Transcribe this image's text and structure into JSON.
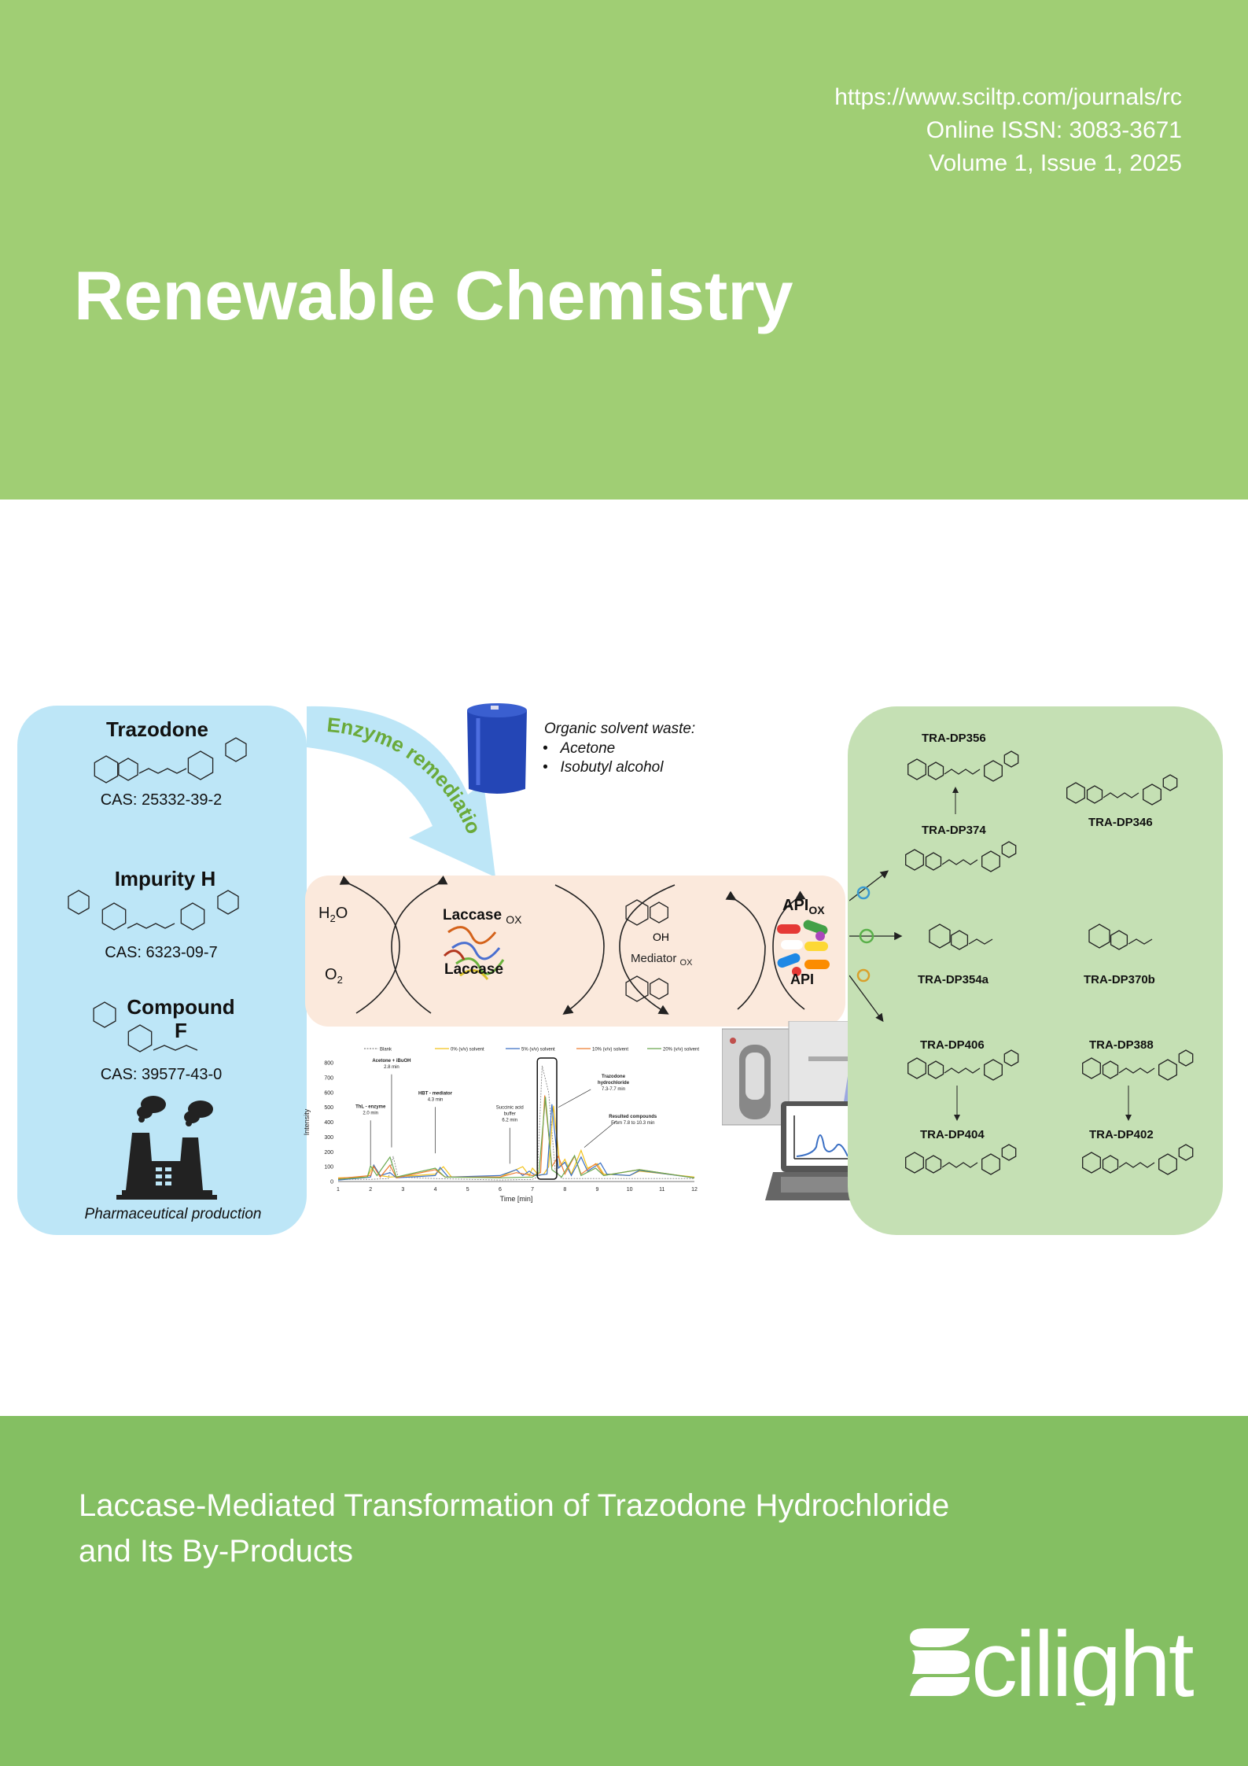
{
  "journal": {
    "url": "https://www.sciltp.com/journals/rc",
    "issn": "Online ISSN: 3083-3671",
    "volume": "Volume 1, Issue 1, 2025",
    "title": "Renewable Chemistry"
  },
  "article": {
    "title_line1": "Laccase-Mediated Transformation of Trazodone Hydrochloride",
    "title_line2": "and Its By-Products"
  },
  "publisher": {
    "logo_text": "Scilight"
  },
  "colors": {
    "header": "#a0ce74",
    "footer": "#84bf62",
    "left_panel": "#bde6f7",
    "right_panel": "#c5e0b4",
    "reaction_box": "#fbe9dc",
    "arrow": "#bde6f7",
    "arrow_text": "#6aaa3a"
  },
  "graphical_abstract": {
    "sources": [
      {
        "name": "Trazodone",
        "cas": "CAS: 25332-39-2"
      },
      {
        "name": "Impurity H",
        "cas": "CAS: 6323-09-7"
      },
      {
        "name_line1": "Compound",
        "name_line2": "F",
        "cas": "CAS: 39577-43-0"
      }
    ],
    "factory_caption": "Pharmaceutical production",
    "arrow_label": "Enzyme remediation",
    "solvent": {
      "heading": "Organic solvent waste:",
      "items": [
        "Acetone",
        "Isobutyl alcohol"
      ]
    },
    "reaction": {
      "h2o": "H",
      "h2o_sub": "2",
      "h2o_end": "O",
      "o2": "O",
      "o2_sub": "2",
      "laccase_ox": "Laccase",
      "laccase_ox_sub": "OX",
      "laccase": "Laccase",
      "hbt_oh": "OH",
      "mediator_ox": "Mediator",
      "mediator_ox_sub": "OX",
      "api_ox": "API",
      "api_ox_sub": "OX",
      "api": "API"
    },
    "products": [
      "TRA-DP356",
      "TRA-DP346",
      "TRA-DP374",
      "TRA-DP354a",
      "TRA-DP370b",
      "TRA-DP406",
      "TRA-DP388",
      "TRA-DP404",
      "TRA-DP402"
    ]
  },
  "chart_data": {
    "type": "line",
    "xlabel": "Time [min]",
    "ylabel": "Intensity",
    "xlim": [
      1,
      12
    ],
    "ylim": [
      0,
      800
    ],
    "xticks": [
      "1",
      "2",
      "3",
      "4",
      "5",
      "6",
      "7",
      "8",
      "9",
      "10",
      "11",
      "12"
    ],
    "yticks": [
      "0",
      "100",
      "200",
      "300",
      "400",
      "500",
      "600",
      "700",
      "800"
    ],
    "legend_position": "top",
    "series": [
      {
        "name": "Blank",
        "color": "#888888",
        "dashed": true,
        "points": [
          [
            1,
            15
          ],
          [
            2,
            15
          ],
          [
            2.55,
            20
          ],
          [
            2.7,
            170
          ],
          [
            2.85,
            30
          ],
          [
            4,
            20
          ],
          [
            6,
            10
          ],
          [
            7,
            15
          ],
          [
            7.15,
            30
          ],
          [
            7.3,
            780
          ],
          [
            7.5,
            600
          ],
          [
            7.7,
            80
          ],
          [
            7.9,
            20
          ],
          [
            12,
            20
          ]
        ]
      },
      {
        "name": "0% (v/v) solvent",
        "color": "#f2c21b",
        "points": [
          [
            1,
            25
          ],
          [
            1.9,
            30
          ],
          [
            2.1,
            110
          ],
          [
            2.3,
            40
          ],
          [
            2.6,
            30
          ],
          [
            3.4,
            40
          ],
          [
            4,
            50
          ],
          [
            4.25,
            100
          ],
          [
            4.5,
            30
          ],
          [
            6,
            30
          ],
          [
            6.7,
            100
          ],
          [
            6.9,
            40
          ],
          [
            7,
            90
          ],
          [
            7.2,
            40
          ],
          [
            7.35,
            50
          ],
          [
            7.5,
            100
          ],
          [
            7.65,
            510
          ],
          [
            7.85,
            100
          ],
          [
            8,
            150
          ],
          [
            8.2,
            50
          ],
          [
            8.5,
            210
          ],
          [
            8.7,
            90
          ],
          [
            9,
            120
          ],
          [
            9.2,
            50
          ],
          [
            10,
            40
          ],
          [
            10.3,
            70
          ],
          [
            12,
            30
          ]
        ]
      },
      {
        "name": "5% (v/v) solvent",
        "color": "#3a6fc4",
        "points": [
          [
            1,
            10
          ],
          [
            2,
            30
          ],
          [
            2.1,
            110
          ],
          [
            2.3,
            40
          ],
          [
            2.6,
            60
          ],
          [
            2.8,
            25
          ],
          [
            4,
            40
          ],
          [
            4.15,
            95
          ],
          [
            4.4,
            30
          ],
          [
            6,
            40
          ],
          [
            6.5,
            80
          ],
          [
            6.7,
            40
          ],
          [
            6.9,
            70
          ],
          [
            7.1,
            40
          ],
          [
            7.45,
            50
          ],
          [
            7.6,
            520
          ],
          [
            7.8,
            90
          ],
          [
            8,
            130
          ],
          [
            8.2,
            40
          ],
          [
            8.5,
            165
          ],
          [
            8.7,
            70
          ],
          [
            9.1,
            125
          ],
          [
            9.3,
            50
          ],
          [
            10,
            40
          ],
          [
            10.3,
            75
          ],
          [
            12,
            25
          ]
        ]
      },
      {
        "name": "10% (v/v) solvent",
        "color": "#ee7d31",
        "points": [
          [
            1,
            20
          ],
          [
            2,
            40
          ],
          [
            2.1,
            100
          ],
          [
            2.3,
            30
          ],
          [
            2.6,
            110
          ],
          [
            2.8,
            25
          ],
          [
            4,
            80
          ],
          [
            4.3,
            30
          ],
          [
            6,
            30
          ],
          [
            6.5,
            60
          ],
          [
            7,
            40
          ],
          [
            7.25,
            60
          ],
          [
            7.38,
            580
          ],
          [
            7.6,
            100
          ],
          [
            7.8,
            170
          ],
          [
            8,
            50
          ],
          [
            8.3,
            170
          ],
          [
            8.5,
            50
          ],
          [
            8.95,
            120
          ],
          [
            9.2,
            40
          ],
          [
            10.3,
            80
          ],
          [
            12,
            25
          ]
        ]
      },
      {
        "name": "20% (v/v) solvent",
        "color": "#6aa84f",
        "points": [
          [
            1,
            15
          ],
          [
            1.9,
            30
          ],
          [
            2.0,
            105
          ],
          [
            2.2,
            40
          ],
          [
            2.6,
            165
          ],
          [
            2.8,
            30
          ],
          [
            4,
            90
          ],
          [
            4.3,
            30
          ],
          [
            6,
            25
          ],
          [
            7,
            30
          ],
          [
            7.2,
            60
          ],
          [
            7.4,
            570
          ],
          [
            7.6,
            80
          ],
          [
            7.9,
            30
          ],
          [
            8.3,
            175
          ],
          [
            8.5,
            40
          ],
          [
            8.95,
            90
          ],
          [
            9.2,
            40
          ],
          [
            10.3,
            80
          ],
          [
            12,
            25
          ]
        ]
      }
    ],
    "annotations": [
      {
        "bold": "ThL - enzyme",
        "text": "2.0 min",
        "x": 2.0,
        "y": 100
      },
      {
        "bold": "Acetone + iBuOH",
        "text": "2.8 min",
        "x": 2.65,
        "y": 220
      },
      {
        "bold": "HBT",
        "text_after": " - mediator",
        "text": "4.3 min",
        "x": 4.0,
        "y": 180
      },
      {
        "bold": "",
        "text_lines": [
          "Succinic acid",
          "buffer",
          "6.2 min"
        ],
        "x": 6.3,
        "y": 110
      },
      {
        "bold": "Trazodone hydrochloride",
        "text": "7.3-7.7 min",
        "x": 8.8,
        "y": 640
      },
      {
        "bold": "Resulted compounds",
        "text": "From 7.8 to 10.3 min",
        "x": 9.7,
        "y": 400
      }
    ],
    "highlight_box": [
      7.15,
      7.75
    ]
  }
}
